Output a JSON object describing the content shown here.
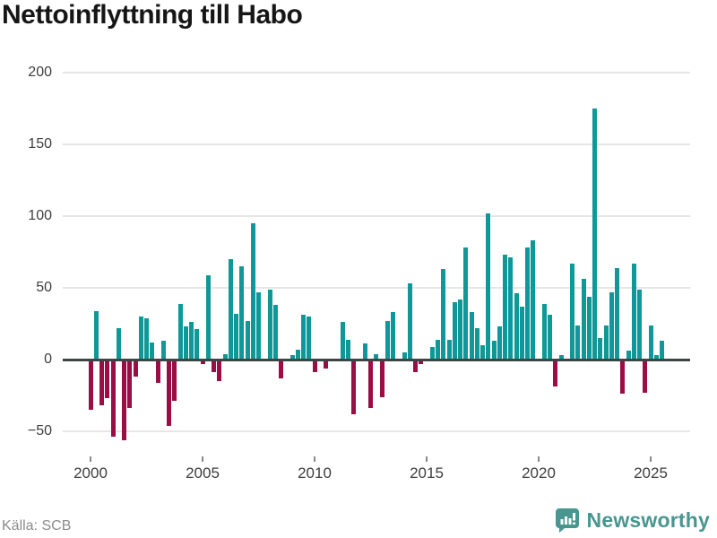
{
  "title": "Nettoinflyttning till Habo",
  "source": "Källa: SCB",
  "branding": {
    "name": "Newsworthy"
  },
  "colors": {
    "positive": "#109899",
    "negative": "#9a0d45",
    "zero_axis": "#3c4543",
    "gridline": "#e6e6e6",
    "title_text": "#161616",
    "tick_text": "#3e3e3e",
    "source_text": "#8c8c8c",
    "brand_teal": "#47968f"
  },
  "chart_data": {
    "type": "bar",
    "title": "Nettoinflyttning till Habo",
    "frequency": "quarterly",
    "x_start": "2000-Q1",
    "x_end": "2025-Q3",
    "values": [
      -35,
      34,
      -32,
      -27,
      -54,
      22,
      -56,
      -34,
      -12,
      30,
      29,
      12,
      -16,
      13,
      -46,
      -29,
      39,
      23,
      26,
      21,
      -3,
      59,
      -9,
      -15,
      4,
      70,
      32,
      65,
      27,
      95,
      47,
      0,
      49,
      38,
      -13,
      -1,
      3,
      7,
      31,
      30,
      -9,
      0,
      -6,
      0,
      0,
      26,
      14,
      -38,
      0,
      11,
      -34,
      4,
      -26,
      27,
      33,
      0,
      5,
      53,
      -9,
      -3,
      0,
      9,
      14,
      63,
      14,
      40,
      42,
      78,
      33,
      22,
      10,
      102,
      13,
      23,
      73,
      71,
      46,
      37,
      78,
      83,
      0,
      39,
      31,
      -19,
      3,
      0,
      67,
      24,
      56,
      44,
      175,
      15,
      24,
      47,
      64,
      -24,
      6,
      67,
      49,
      -23,
      24,
      3,
      13
    ],
    "x_tick_years": [
      2000,
      2005,
      2010,
      2015,
      2020,
      2025
    ],
    "x_tick_labels": [
      "2000",
      "2005",
      "2010",
      "2015",
      "2020",
      "2025"
    ],
    "y_ticks": [
      200,
      150,
      100,
      50,
      0,
      -50
    ],
    "y_tick_labels": [
      "200",
      "150",
      "100",
      "50",
      "0",
      "−50"
    ],
    "ylim": [
      -62,
      212
    ],
    "grid": true,
    "legend": "none",
    "positive_color": "#109899",
    "negative_color": "#9a0d45"
  }
}
